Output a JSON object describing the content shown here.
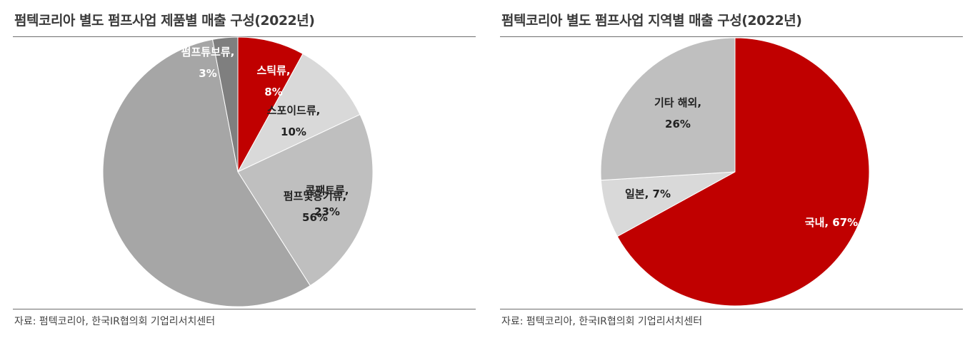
{
  "panels": [
    {
      "title": "펌텍코리아 별도 펌프사업 제품별 매출 구성(2022년)",
      "source": "자료: 펌텍코리아, 한국IR협의회 기업리서치센터"
    },
    {
      "title": "펌텍코리아 별도 펌프사업 지역별 매출 구성(2022년)",
      "source": "자료: 펌텍코리아, 한국IR협의회 기업리서치센터"
    }
  ],
  "chart_data": [
    {
      "type": "pie",
      "title": "펌텍코리아 별도 펌프사업 제품별 매출 구성(2022년)",
      "slices": [
        {
          "label": "스틱류,",
          "pct_label": "8%",
          "value": 8,
          "color": "#c00000",
          "text_color": "#ffffff"
        },
        {
          "label": "스포이드류,",
          "pct_label": "10%",
          "value": 10,
          "color": "#d9d9d9",
          "text_color": "#222222"
        },
        {
          "label": "콤팩트류,",
          "pct_label": "23%",
          "value": 23,
          "color": "#bfbfbf",
          "text_color": "#222222"
        },
        {
          "label": "펌프및용기류,",
          "pct_label": "56%",
          "value": 56,
          "color": "#a6a6a6",
          "text_color": "#222222"
        },
        {
          "label": "펌프튜브류,",
          "pct_label": "3%",
          "value": 3,
          "color": "#7f7f7f",
          "text_color": "#ffffff"
        }
      ]
    },
    {
      "type": "pie",
      "title": "펌텍코리아 별도 펌프사업 지역별 매출 구성(2022년)",
      "slices": [
        {
          "label": "국내, 67%",
          "pct_label": "",
          "value": 67,
          "color": "#c00000",
          "text_color": "#ffffff"
        },
        {
          "label": "일본, 7%",
          "pct_label": "",
          "value": 7,
          "color": "#d9d9d9",
          "text_color": "#222222"
        },
        {
          "label": "기타 해외,",
          "pct_label": "26%",
          "value": 26,
          "color": "#bfbfbf",
          "text_color": "#222222"
        }
      ]
    }
  ]
}
